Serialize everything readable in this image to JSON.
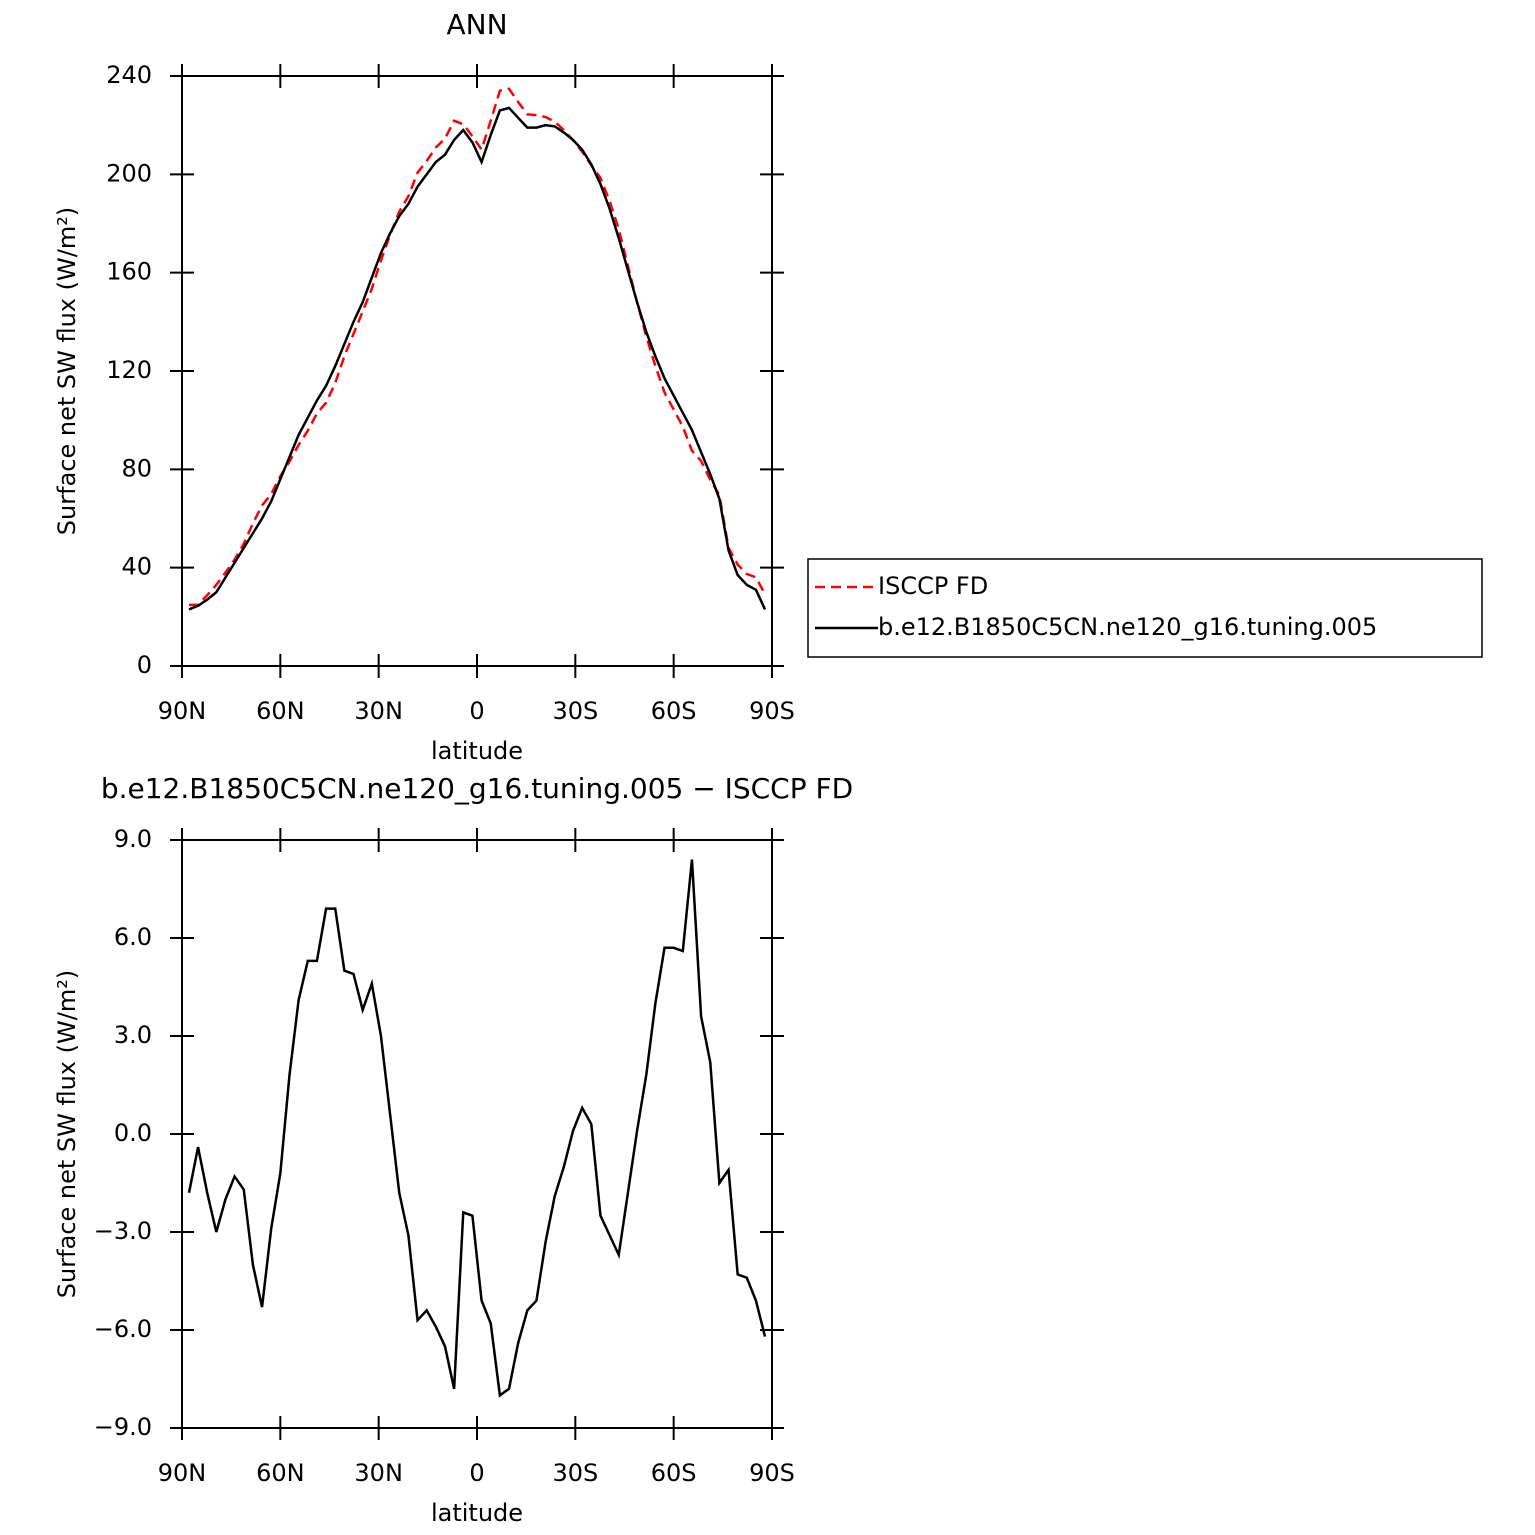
{
  "chart_data": [
    {
      "type": "line",
      "title": "ANN",
      "xlabel": "latitude",
      "ylabel": "Surface net SW flux (W/m²)",
      "x": [
        87.86,
        85.1,
        82.31,
        79.53,
        76.74,
        73.95,
        71.16,
        68.37,
        65.58,
        62.79,
        60.0,
        57.21,
        54.42,
        51.63,
        48.84,
        46.04,
        43.25,
        40.46,
        37.67,
        34.88,
        32.09,
        29.3,
        26.51,
        23.72,
        20.93,
        18.14,
        15.35,
        12.56,
        9.77,
        6.98,
        4.19,
        1.4,
        -1.4,
        -4.19,
        -6.98,
        -9.77,
        -12.56,
        -15.35,
        -18.14,
        -20.93,
        -23.72,
        -26.51,
        -29.3,
        -32.09,
        -34.88,
        -37.67,
        -40.46,
        -43.25,
        -46.04,
        -48.84,
        -51.63,
        -54.42,
        -57.21,
        -60.0,
        -62.79,
        -65.58,
        -68.37,
        -71.16,
        -73.95,
        -76.74,
        -79.53,
        -82.31,
        -85.1,
        -87.86
      ],
      "series": [
        {
          "name": "ISCCP FD",
          "color": "#ff0000",
          "linestyle": "dashed",
          "values": [
            24.8,
            24.9,
            28.8,
            33,
            38,
            43.3,
            49.7,
            58,
            65.3,
            69.9,
            77.2,
            83.2,
            89.9,
            95.7,
            102.7,
            107.1,
            115.1,
            126,
            135.1,
            144.2,
            153.4,
            165,
            175.4,
            184.8,
            191.1,
            200.7,
            205.4,
            210.9,
            214.5,
            221.8,
            220.4,
            215.5,
            210.1,
            221.8,
            234,
            234.8,
            229.4,
            224.4,
            224.1,
            223.3,
            221.4,
            218,
            213.9,
            209.2,
            203.7,
            198.5,
            189.1,
            177.7,
            162.8,
            147.9,
            134.2,
            122,
            111.3,
            104.3,
            97.4,
            87.6,
            83.4,
            75.8,
            69.5,
            48.1,
            41.3,
            37.4,
            36.1,
            29.2
          ]
        },
        {
          "name": "b.e12.B1850C5CN.ne120_g16.tuning.005",
          "color": "#000000",
          "linestyle": "solid",
          "values": [
            23,
            24.5,
            27,
            30,
            36,
            42,
            48,
            54,
            60,
            67,
            76,
            85,
            94,
            101,
            108,
            114,
            122,
            131,
            140,
            148,
            158,
            168,
            176,
            183,
            188,
            195,
            200,
            205,
            208,
            214,
            218,
            213,
            205,
            216,
            226,
            227,
            223,
            219,
            219,
            220,
            219.5,
            217,
            214,
            210,
            204,
            196,
            186,
            174,
            161,
            148,
            136,
            126,
            117,
            110,
            103,
            96,
            87,
            78,
            68,
            47,
            37,
            33,
            31,
            23
          ]
        }
      ],
      "xlim": [
        90,
        -90
      ],
      "xticks": [
        {
          "value": 90,
          "label": "90N"
        },
        {
          "value": 60,
          "label": "60N"
        },
        {
          "value": 30,
          "label": "30N"
        },
        0,
        {
          "value": -30,
          "label": "30S"
        },
        {
          "value": -60,
          "label": "60S"
        },
        {
          "value": -90,
          "label": "90S"
        }
      ],
      "ylim": [
        0,
        240
      ],
      "yticks": [
        0,
        40,
        80,
        120,
        160,
        200,
        240
      ],
      "legend": "right"
    },
    {
      "type": "line",
      "title": "b.e12.B1850C5CN.ne120_g16.tuning.005 − ISCCP FD",
      "xlabel": "latitude",
      "ylabel": "Surface net SW flux (W/m²)",
      "x": [
        87.86,
        85.1,
        82.31,
        79.53,
        76.74,
        73.95,
        71.16,
        68.37,
        65.58,
        62.79,
        60.0,
        57.21,
        54.42,
        51.63,
        48.84,
        46.04,
        43.25,
        40.46,
        37.67,
        34.88,
        32.09,
        29.3,
        26.51,
        23.72,
        20.93,
        18.14,
        15.35,
        12.56,
        9.77,
        6.98,
        4.19,
        1.4,
        -1.4,
        -4.19,
        -6.98,
        -9.77,
        -12.56,
        -15.35,
        -18.14,
        -20.93,
        -23.72,
        -26.51,
        -29.3,
        -32.09,
        -34.88,
        -37.67,
        -40.46,
        -43.25,
        -46.04,
        -48.84,
        -51.63,
        -54.42,
        -57.21,
        -60.0,
        -62.79,
        -65.58,
        -68.37,
        -71.16,
        -73.95,
        -76.74,
        -79.53,
        -82.31,
        -85.1,
        -87.86
      ],
      "values": [
        -1.8,
        -0.4,
        -1.8,
        -3.0,
        -2.0,
        -1.3,
        -1.7,
        -4.0,
        -5.3,
        -2.9,
        -1.2,
        1.8,
        4.1,
        5.3,
        5.3,
        6.9,
        6.9,
        5.0,
        4.9,
        3.8,
        4.6,
        3.0,
        0.6,
        -1.8,
        -3.1,
        -5.7,
        -5.4,
        -5.9,
        -6.5,
        -7.8,
        -2.4,
        -2.5,
        -5.1,
        -5.8,
        -8.0,
        -7.8,
        -6.4,
        -5.4,
        -5.1,
        -3.3,
        -1.9,
        -1.0,
        0.1,
        0.8,
        0.3,
        -2.5,
        -3.1,
        -3.7,
        -1.8,
        0.1,
        1.8,
        4.0,
        5.7,
        5.7,
        5.6,
        8.4,
        3.6,
        2.2,
        -1.5,
        -1.1,
        -4.3,
        -4.4,
        -5.1,
        -6.2
      ],
      "color": "#000000",
      "xlim": [
        90,
        -90
      ],
      "xticks": [
        {
          "value": 90,
          "label": "90N"
        },
        {
          "value": 60,
          "label": "60N"
        },
        {
          "value": 30,
          "label": "30N"
        },
        0,
        {
          "value": -30,
          "label": "30S"
        },
        {
          "value": -60,
          "label": "60S"
        },
        {
          "value": -90,
          "label": "90S"
        }
      ],
      "ylim": [
        -9,
        9
      ],
      "yticks": [
        {
          "value": -9,
          "label": "−9.0"
        },
        {
          "value": -6,
          "label": "−6.0"
        },
        {
          "value": -3,
          "label": "−3.0"
        },
        {
          "value": 0,
          "label": "0.0"
        },
        {
          "value": 3,
          "label": "3.0"
        },
        {
          "value": 6,
          "label": "6.0"
        },
        {
          "value": 9,
          "label": "9.0"
        }
      ]
    }
  ]
}
